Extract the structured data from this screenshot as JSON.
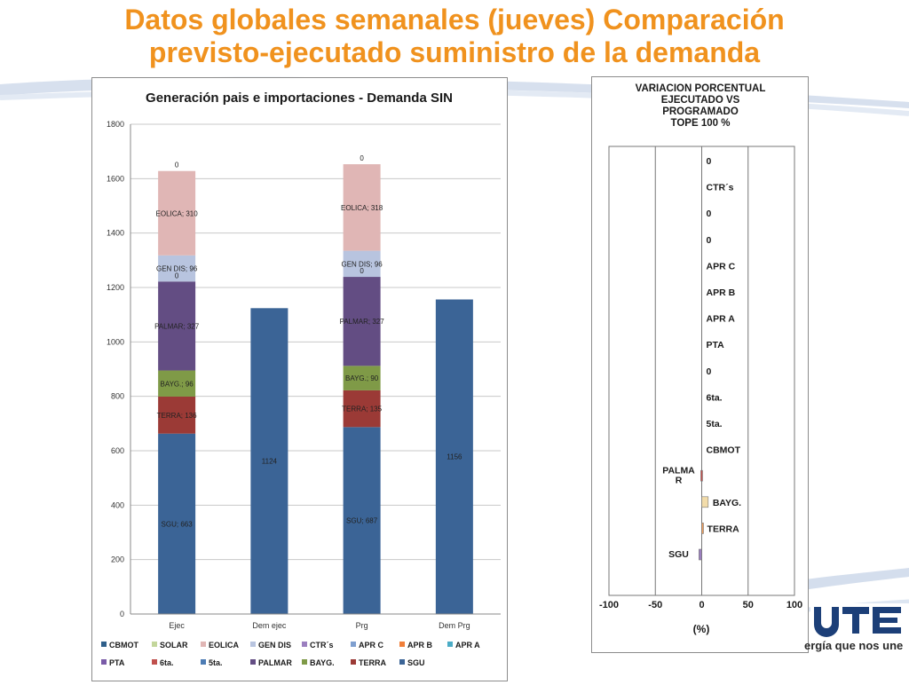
{
  "slide": {
    "title_line1": "Datos globales semanales  (jueves) Comparación",
    "title_line2": "previsto-ejecutado suministro de la demanda",
    "slogan": "ergía que nos une",
    "accent_color": "#f0921e"
  },
  "chart_data": [
    {
      "type": "bar",
      "title": "Generación pais e importaciones - Demanda SIN",
      "categories": [
        "Ejec",
        "Dem ejec",
        "Prg",
        "Dem Prg"
      ],
      "ylim": [
        0,
        1800
      ],
      "yticks": [
        0,
        200,
        400,
        600,
        800,
        1000,
        1200,
        1400,
        1600,
        1800
      ],
      "grid": true,
      "legend_position": "bottom",
      "stacked_series": [
        {
          "name": "SGU",
          "color": "#3b6496",
          "values": [
            663,
            null,
            687,
            null
          ],
          "labels": [
            "SGU; 663",
            null,
            "SGU; 687",
            null
          ]
        },
        {
          "name": "TERRA",
          "color": "#9b3a36",
          "values": [
            136,
            null,
            135,
            null
          ],
          "labels": [
            "TERRA; 136",
            null,
            "TERRA; 135",
            null
          ]
        },
        {
          "name": "BAYG.",
          "color": "#7f9a47",
          "values": [
            96,
            null,
            90,
            null
          ],
          "labels": [
            "BAYG.; 96",
            null,
            "BAYG.; 90",
            null
          ]
        },
        {
          "name": "PALMAR",
          "color": "#634d83",
          "values": [
            327,
            null,
            327,
            null
          ],
          "labels": [
            "PALMAR; 327",
            null,
            "PALMAR; 327",
            null
          ]
        },
        {
          "name": "5ta.",
          "color": "#4d7cb4",
          "values": [
            0,
            null,
            0,
            null
          ],
          "labels": [
            "0",
            null,
            "0",
            null
          ]
        },
        {
          "name": "GEN DIS",
          "color": "#b8c4df",
          "values": [
            96,
            null,
            96,
            null
          ],
          "labels": [
            "GEN DIS; 96",
            null,
            "GEN DIS; 96",
            null
          ]
        },
        {
          "name": "EOLICA",
          "color": "#e0b6b5",
          "values": [
            310,
            null,
            318,
            null
          ],
          "labels": [
            "EOLICA; 310",
            null,
            "EOLICA; 318",
            null
          ]
        },
        {
          "name": "SOLAR",
          "color": "#c3d69b",
          "values": [
            0,
            null,
            0,
            null
          ],
          "labels": [
            "0",
            null,
            "0",
            null
          ]
        }
      ],
      "demand_series": {
        "name": "Demanda",
        "color": "#3b6496",
        "values": [
          null,
          1124,
          null,
          1156
        ],
        "labels": [
          null,
          "1124",
          null,
          "1156"
        ]
      },
      "legend": [
        {
          "name": "CBMOT",
          "color": "#2f5f8a"
        },
        {
          "name": "SOLAR",
          "color": "#c3d69b"
        },
        {
          "name": "EOLICA",
          "color": "#e0b6b5"
        },
        {
          "name": "GEN DIS",
          "color": "#b8c4df"
        },
        {
          "name": "CTR´s",
          "color": "#9b7fbf"
        },
        {
          "name": "APR C",
          "color": "#7f9fcf"
        },
        {
          "name": "APR B",
          "color": "#f07f3a"
        },
        {
          "name": "APR A",
          "color": "#4bacc6"
        },
        {
          "name": "PTA",
          "color": "#7a5ba8"
        },
        {
          "name": "6ta.",
          "color": "#c0504d"
        },
        {
          "name": "5ta.",
          "color": "#4d7cb4"
        },
        {
          "name": "PALMAR",
          "color": "#634d83"
        },
        {
          "name": "BAYG.",
          "color": "#7f9a47"
        },
        {
          "name": "TERRA",
          "color": "#9b3a36"
        },
        {
          "name": "SGU",
          "color": "#3b6496"
        }
      ]
    },
    {
      "type": "bar",
      "orientation": "horizontal",
      "title": "VARIACION PORCENTUAL EJECUTADO VS PROGRAMADO TOPE 100 %",
      "title_lines": [
        "VARIACION PORCENTUAL",
        "EJECUTADO VS",
        "PROGRAMADO",
        "TOPE 100 %"
      ],
      "xlabel": "(%)",
      "xlim": [
        -100,
        100
      ],
      "xticks": [
        -100,
        -50,
        0,
        50,
        100
      ],
      "grid": true,
      "categories": [
        "0",
        "CTR´s",
        "0",
        "0",
        "APR C",
        "APR B",
        "APR A",
        "PTA",
        "0",
        "6ta.",
        "5ta.",
        "CBMOT",
        "PALMAR",
        "BAYG.",
        "TERRA",
        "SGU"
      ],
      "values": [
        0,
        0,
        0,
        0,
        0,
        0,
        0,
        0,
        0,
        0,
        0,
        0,
        -1,
        7,
        1,
        -3
      ],
      "colors": [
        "#888888",
        "#888888",
        "#888888",
        "#888888",
        "#888888",
        "#888888",
        "#888888",
        "#888888",
        "#888888",
        "#888888",
        "#888888",
        "#888888",
        "#c0504d",
        "#f2dcaa",
        "#f0a060",
        "#9b7fbf"
      ]
    }
  ]
}
